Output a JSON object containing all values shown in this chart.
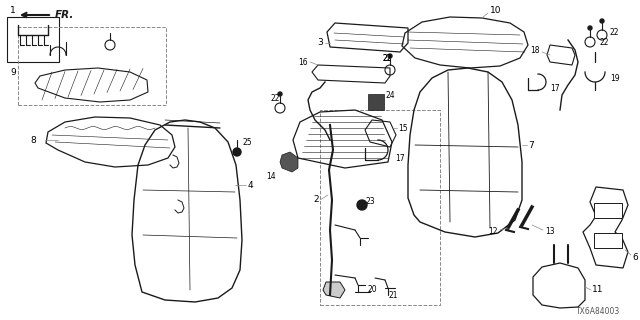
{
  "bg_color": "#ffffff",
  "diagram_id": "TX6A84003",
  "lc": "#1a1a1a",
  "tc": "#000000",
  "gray": "#888888"
}
